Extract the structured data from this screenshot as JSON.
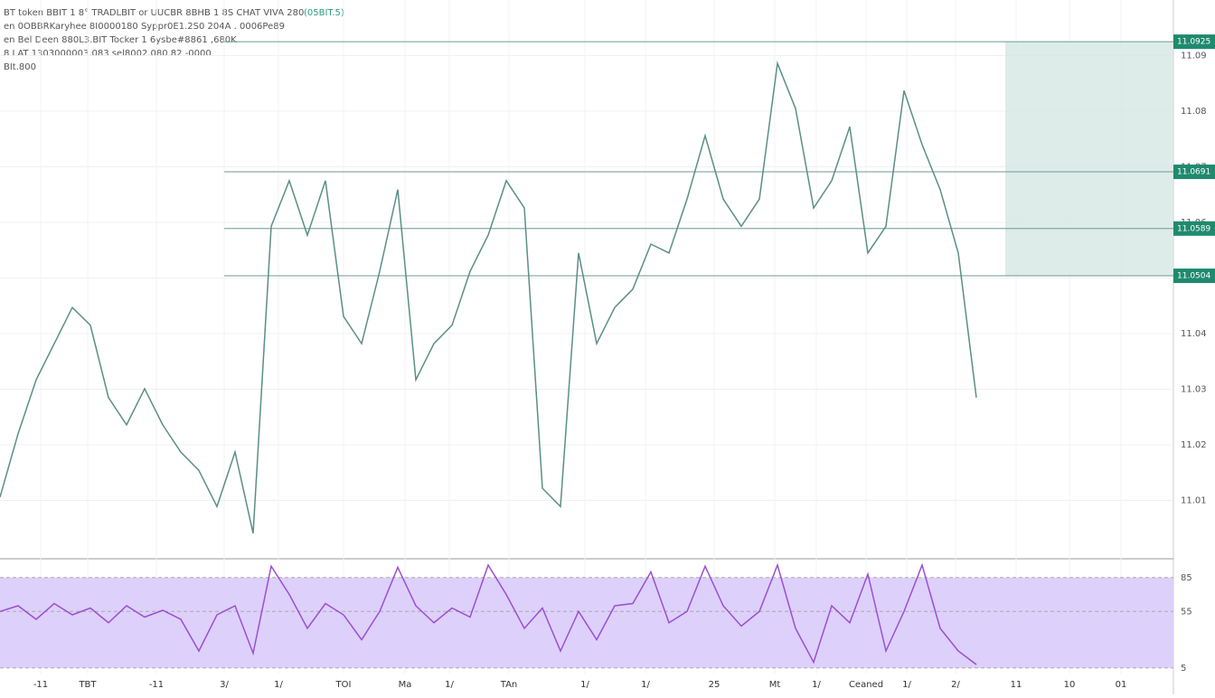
{
  "header": {
    "lines": [
      "BT token BBIT 1 8° TRADLBIT or UUCBR 8BHB 1 8S CHAT VIVA 280",
      "en 0OBBRKaryhee 8I0000180 Syppr0E1.2S0 204A . 0006Pe89",
      "en Bel Deen 880L3.BIT Tocker 1 6ysbe#8861 ,680K",
      "8 LAT 1303000003.083 sel8002.080.82 -0000",
      "BIt.800"
    ],
    "badge": "(05BIT.5)"
  },
  "chart_data": [
    {
      "type": "line",
      "color": "#5a8f86",
      "x": [
        0,
        1,
        2,
        3,
        4,
        5,
        6,
        7,
        8,
        9,
        10,
        11,
        12,
        13,
        14,
        15,
        16,
        17,
        18,
        19,
        20,
        21,
        22,
        23,
        24,
        25,
        26,
        27,
        28,
        29,
        30,
        31,
        32,
        33,
        34,
        35,
        36,
        37,
        38,
        39,
        40,
        41,
        42,
        43,
        44,
        45,
        46,
        47,
        48,
        49,
        50,
        51,
        52,
        53,
        54
      ],
      "values": [
        11.0106,
        11.022,
        11.0317,
        11.0382,
        11.0447,
        11.0415,
        11.0285,
        11.0236,
        11.0301,
        11.0236,
        11.0187,
        11.0154,
        11.0089,
        11.0187,
        11.0041,
        11.0593,
        11.0675,
        11.0577,
        11.0675,
        11.0431,
        11.0382,
        11.0512,
        11.0659,
        11.0317,
        11.0382,
        11.0415,
        11.0512,
        11.0577,
        11.0675,
        11.0626,
        11.0122,
        11.0089,
        11.0545,
        11.0382,
        11.0447,
        11.048,
        11.0561,
        11.0545,
        11.0642,
        11.0756,
        11.0642,
        11.0593,
        11.0642,
        11.0886,
        11.0805,
        11.0626,
        11.0675,
        11.0772,
        11.0545,
        11.0593,
        11.0837,
        11.074,
        11.0659,
        11.0545,
        11.0285
      ],
      "xlim": [
        0,
        64.9
      ],
      "xticks": [
        {
          "value": 2.25,
          "label": "-11"
        },
        {
          "value": 4.85,
          "label": "TBT"
        },
        {
          "value": 8.65,
          "label": "-11"
        },
        {
          "value": 12.4,
          "label": "3/"
        },
        {
          "value": 15.4,
          "label": "1/"
        },
        {
          "value": 19,
          "label": "TOI"
        },
        {
          "value": 22.4,
          "label": "Ma"
        },
        {
          "value": 24.85,
          "label": "1/"
        },
        {
          "value": 28.15,
          "label": "TAn"
        },
        {
          "value": 32.35,
          "label": "1/"
        },
        {
          "value": 35.7,
          "label": "1/"
        },
        {
          "value": 39.5,
          "label": "25"
        },
        {
          "value": 42.85,
          "label": "Mt"
        },
        {
          "value": 45.15,
          "label": "1/"
        },
        {
          "value": 47.9,
          "label": "Ceaned"
        },
        {
          "value": 50.15,
          "label": "1/"
        },
        {
          "value": 52.85,
          "label": "2/"
        },
        {
          "value": 56.2,
          "label": "11"
        },
        {
          "value": 59.15,
          "label": "10"
        },
        {
          "value": 62,
          "label": "01"
        }
      ],
      "ylim": [
        11.0,
        11.1
      ],
      "yticks": [
        11.01,
        11.02,
        11.03,
        11.04,
        11.05,
        11.06,
        11.07,
        11.08,
        11.09
      ],
      "levels": [
        11.0925,
        11.0691,
        11.0589,
        11.0504
      ],
      "grid": true
    },
    {
      "type": "line",
      "color": "#9b4fd1",
      "values": [
        55,
        60,
        48,
        62,
        52,
        58,
        45,
        60,
        50,
        56,
        48,
        20,
        52,
        60,
        18,
        95,
        70,
        40,
        62,
        52,
        30,
        55,
        94,
        60,
        45,
        58,
        50,
        96,
        70,
        40,
        58,
        20,
        55,
        30,
        60,
        62,
        90,
        45,
        55,
        95,
        60,
        42,
        55,
        96,
        40,
        10,
        60,
        45,
        88,
        20,
        55,
        96,
        40,
        20,
        8
      ],
      "ylim": [
        0,
        100
      ],
      "yticks": [
        5,
        55,
        85
      ]
    }
  ]
}
